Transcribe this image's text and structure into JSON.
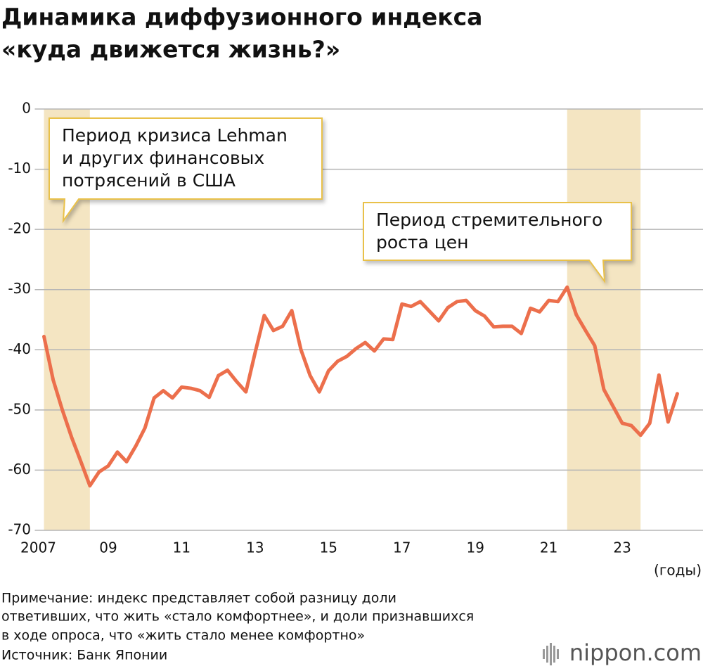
{
  "chart_data": {
    "type": "line",
    "title": [
      "Динамика диффузионного индекса",
      "«куда движется жизнь?»"
    ],
    "x_label": "(годы)",
    "note": [
      "Примечание: индекс представляет собой разницу доли",
      "ответивших, что жить «стало комфортнее», и доли признавшихся",
      "в ходе опроса, что «жить стало менее комфортно»"
    ],
    "source": "Источник: Банк Японии",
    "logo": "nippon.com",
    "xlim": [
      2007,
      2025.2
    ],
    "ylim": [
      -70,
      0
    ],
    "yticks": [
      0,
      -10,
      -20,
      -30,
      -40,
      -50,
      -60,
      -70
    ],
    "xticks": [
      {
        "value": 2007,
        "label": "2007"
      },
      {
        "value": 2009,
        "label": "09"
      },
      {
        "value": 2011,
        "label": "11"
      },
      {
        "value": 2013,
        "label": "13"
      },
      {
        "value": 2015,
        "label": "15"
      },
      {
        "value": 2017,
        "label": "17"
      },
      {
        "value": 2019,
        "label": "19"
      },
      {
        "value": 2021,
        "label": "21"
      },
      {
        "value": 2023,
        "label": "23"
      }
    ],
    "grid": true,
    "bands": [
      {
        "x0": 2007.25,
        "x1": 2008.5,
        "color": "#f4e5c2",
        "label": [
          "Период кризиса Lehman",
          "и других финансовых",
          "потрясений в США"
        ]
      },
      {
        "x0": 2021.5,
        "x1": 2023.5,
        "color": "#f4e5c2",
        "label": [
          "Период стремительного",
          "роста цен"
        ]
      }
    ],
    "x": [
      2007.25,
      2007.5,
      2007.75,
      2008,
      2008.25,
      2008.5,
      2008.75,
      2009,
      2009.25,
      2009.5,
      2009.75,
      2010,
      2010.25,
      2010.5,
      2010.75,
      2011,
      2011.25,
      2011.5,
      2011.75,
      2012,
      2012.25,
      2012.5,
      2012.75,
      2013,
      2013.25,
      2013.5,
      2013.75,
      2014,
      2014.25,
      2014.5,
      2014.75,
      2015,
      2015.25,
      2015.5,
      2015.75,
      2016,
      2016.25,
      2016.5,
      2016.75,
      2017,
      2017.25,
      2017.5,
      2017.75,
      2018,
      2018.25,
      2018.5,
      2018.75,
      2019,
      2019.25,
      2019.5,
      2019.75,
      2020,
      2020.25,
      2020.5,
      2020.75,
      2021,
      2021.25,
      2021.5,
      2021.75,
      2022,
      2022.25,
      2022.5,
      2022.75,
      2023,
      2023.25,
      2023.5,
      2023.75,
      2024,
      2024.25,
      2024.5
    ],
    "series": [
      {
        "color": "#ec6f4c",
        "values": [
          -37.8,
          -45,
          -50,
          -54.5,
          -58.5,
          -62.6,
          -60.3,
          -59.3,
          -57,
          -58.6,
          -56,
          -53,
          -48,
          -46.8,
          -48,
          -46.2,
          -46.4,
          -46.8,
          -47.9,
          -44.3,
          -43.4,
          -45.3,
          -47,
          -40.5,
          -34.3,
          -36.8,
          -36.1,
          -33.5,
          -40,
          -44.3,
          -47,
          -43.5,
          -41.9,
          -41.1,
          -39.8,
          -38.8,
          -40.2,
          -38.2,
          -38.3,
          -32.4,
          -32.8,
          -32,
          -33.6,
          -35.2,
          -33,
          -32,
          -31.8,
          -33.5,
          -34.4,
          -36.2,
          -36.1,
          -36.1,
          -37.3,
          -33.1,
          -33.7,
          -31.8,
          -32,
          -29.6,
          -34.2,
          -36.8,
          -39.3,
          -46.6,
          -49.4,
          -52.2,
          -52.6,
          -54.2,
          -52.2,
          -44.2,
          -52,
          -47.3
        ]
      }
    ]
  }
}
